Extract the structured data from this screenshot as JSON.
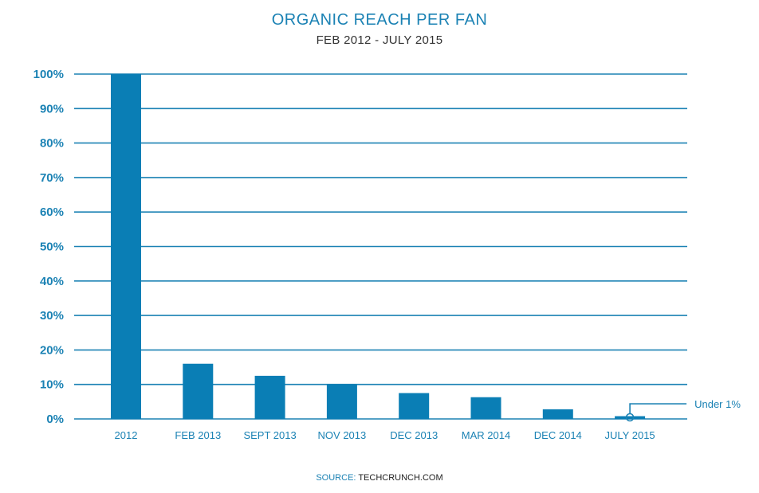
{
  "colors": {
    "accent": "#1b82b4",
    "bar": "#0a7eb5",
    "grid": "#1b82b4",
    "text_dark": "#333333"
  },
  "chart_data": {
    "type": "bar",
    "title": "ORGANIC REACH PER FAN",
    "subtitle": "FEB 2012 - JULY 2015",
    "categories": [
      "2012",
      "FEB 2013",
      "SEPT 2013",
      "NOV 2013",
      "DEC 2013",
      "MAR 2014",
      "DEC 2014",
      "JULY 2015"
    ],
    "values": [
      100,
      16,
      12.5,
      10,
      7.5,
      6.3,
      2.8,
      0.8
    ],
    "ylim": [
      0,
      100
    ],
    "yticks": [
      0,
      10,
      20,
      30,
      40,
      50,
      60,
      70,
      80,
      90,
      100
    ],
    "ytick_labels": [
      "0%",
      "10%",
      "20%",
      "30%",
      "40%",
      "50%",
      "60%",
      "70%",
      "80%",
      "90%",
      "100%"
    ],
    "grid": true,
    "xlabel": "",
    "ylabel": "",
    "annotations": [
      {
        "category": "JULY 2015",
        "text": "Under 1%"
      }
    ]
  },
  "source": {
    "label": "SOURCE:",
    "value": "TECHCRUNCH.COM"
  }
}
